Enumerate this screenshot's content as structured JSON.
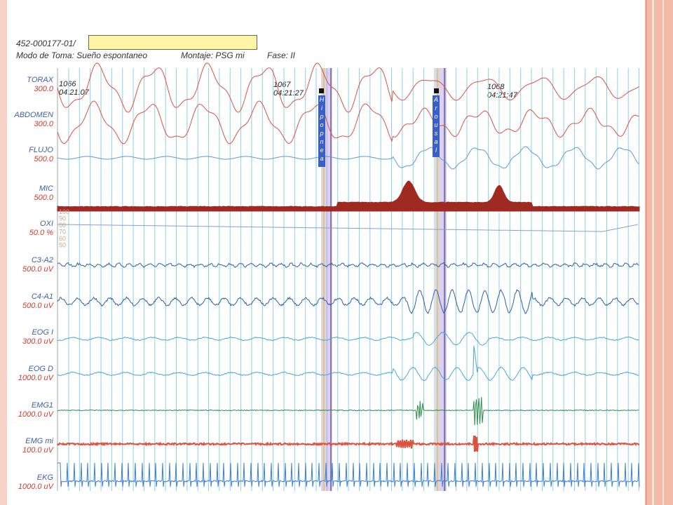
{
  "header": {
    "study_id": "452-000177-01/",
    "mode_label": "Modo de Toma: Sueño espontaneo",
    "montage_label": "Montaje: PSG mi",
    "phase_label": "Fase: II"
  },
  "channels": [
    {
      "name": "TORAX",
      "scale": "300.0",
      "color": "#d9533f"
    },
    {
      "name": "ABDOMEN",
      "scale": "300.0",
      "color": "#d9533f"
    },
    {
      "name": "FLUJO",
      "scale": "500.0",
      "color": "#5b9bd5"
    },
    {
      "name": "MIC",
      "scale": "500.0",
      "color": "#9e2a22"
    },
    {
      "name": "OXI",
      "scale": "50.0 %",
      "color": "#7ea4cf"
    },
    {
      "name": "C3-A2",
      "scale": "500.0 uV",
      "color": "#2d5fa8"
    },
    {
      "name": "C4-A1",
      "scale": "500.0 uV",
      "color": "#2d5fa8"
    },
    {
      "name": "EOG I",
      "scale": "300.0 uV",
      "color": "#4aa6d8"
    },
    {
      "name": "EOG D",
      "scale": "1000.0 uV",
      "color": "#4aa6d8"
    },
    {
      "name": "EMG1",
      "scale": "1000.0 uV",
      "color": "#2e8a4a"
    },
    {
      "name": "EMG mi",
      "scale": "100.0 uV",
      "color": "#d9533f"
    },
    {
      "name": "EKG",
      "scale": "1000.0 uV",
      "color": "#3a7fd0"
    }
  ],
  "epochs": [
    {
      "number": "1066",
      "time": "04:21:07"
    },
    {
      "number": "1067",
      "time": "04:21:27"
    },
    {
      "number": "1068",
      "time": "04:21:47"
    }
  ],
  "oxi_ticks": [
    "100",
    "90",
    "80",
    "70",
    "60",
    "50"
  ],
  "events": [
    {
      "label": "Hipopnea",
      "letters": [
        "H",
        "i",
        "p",
        "o",
        "p",
        "n",
        "e",
        "a"
      ]
    },
    {
      "label": "Arousal",
      "letters": [
        "A",
        "r",
        "o",
        "u",
        "s",
        "a",
        "l"
      ]
    }
  ],
  "colors": {
    "grid": "#8ccfe8",
    "frame_left": "#f6d3c6",
    "frame_right": "#f3bba6",
    "event_band": "#b59ad8",
    "event_label_bg": "#3a5fc8",
    "channel_name": "#3e5fa8",
    "channel_scale": "#d23a2a"
  }
}
